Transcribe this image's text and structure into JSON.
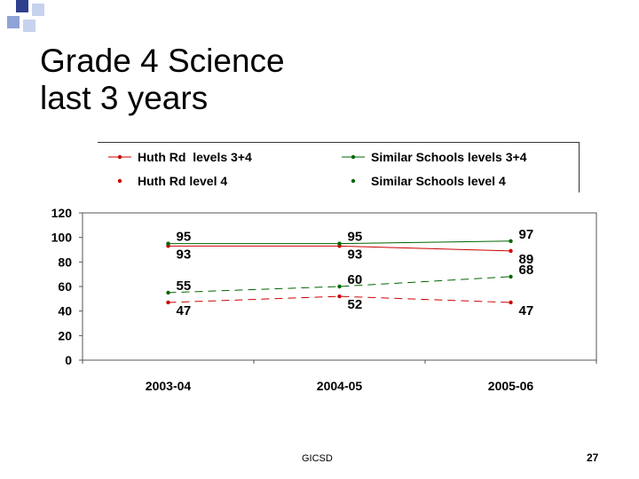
{
  "slide": {
    "title_lines": [
      "Grade 4 Science",
      "last 3 years"
    ],
    "footer": "GICSD",
    "page_number": "27",
    "accent_squares": [
      "#2e3f8f",
      "#8fa3d6",
      "#c7d2ee"
    ]
  },
  "chart_data": {
    "type": "line",
    "categories": [
      "2003-04",
      "2004-05",
      "2005-06"
    ],
    "ylim": [
      0,
      120
    ],
    "yticks": [
      "0",
      "20",
      "40",
      "60",
      "80",
      "100",
      "120"
    ],
    "grid": false,
    "legend_position": "top",
    "series": [
      {
        "name": "Huth Rd  levels 3+4",
        "values": [
          93,
          93,
          89
        ],
        "labels": [
          "93",
          "93",
          "89"
        ],
        "color": "#cc0000",
        "style": "solid",
        "label_side": "below"
      },
      {
        "name": "Huth Rd level 4",
        "values": [
          47,
          52,
          47
        ],
        "labels": [
          "47",
          "52",
          "47"
        ],
        "color": "#cc0000",
        "style": "dashed",
        "label_side": "below"
      },
      {
        "name": "Similar Schools levels 3+4",
        "values": [
          95,
          95,
          97
        ],
        "labels": [
          "95",
          "95",
          "97"
        ],
        "color": "#006600",
        "style": "solid",
        "label_side": "above"
      },
      {
        "name": "Similar Schools level 4",
        "values": [
          55,
          60,
          68
        ],
        "labels": [
          "55",
          "60",
          "68"
        ],
        "color": "#006600",
        "style": "dashed",
        "label_side": "above"
      }
    ]
  }
}
